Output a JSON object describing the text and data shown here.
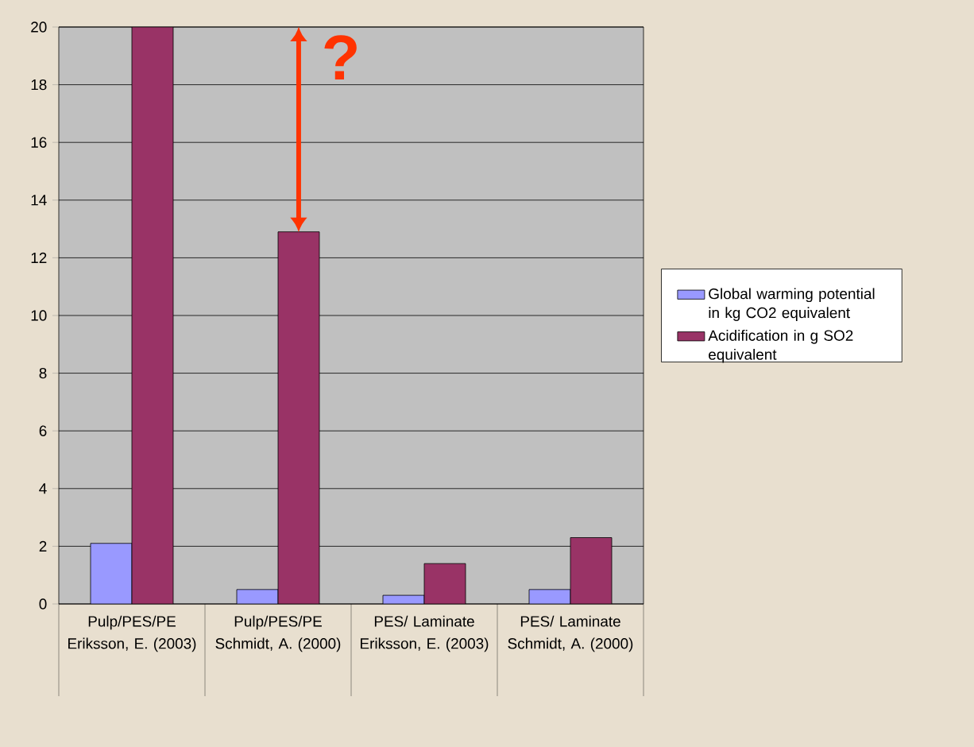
{
  "chart_data": {
    "type": "bar",
    "categories": [
      "Pulp/PES/PE Eriksson, E. (2003)",
      "Pulp/PES/PE Schmidt, A. (2000)",
      "PES/ Laminate Eriksson, E. (2003)",
      "PES/ Laminate Schmidt, A. (2000)"
    ],
    "series": [
      {
        "name": "Global warming potential in kg CO2 equivalent",
        "color": "#9999ff",
        "values": [
          2.1,
          0.5,
          0.3,
          0.5
        ]
      },
      {
        "name": "Acidification in g SO2 equivalent",
        "color": "#993366",
        "values": [
          20,
          12.9,
          1.4,
          2.3
        ]
      }
    ],
    "ylim": [
      0,
      20
    ],
    "yticks": [
      0,
      2,
      4,
      6,
      8,
      10,
      12,
      14,
      16,
      18,
      20
    ],
    "grid": "y",
    "legend": "right",
    "annotations": [
      {
        "text": "?",
        "x": "Pulp/PES/PE Schmidt, A. (2000)",
        "y": 12.9
      }
    ]
  }
}
